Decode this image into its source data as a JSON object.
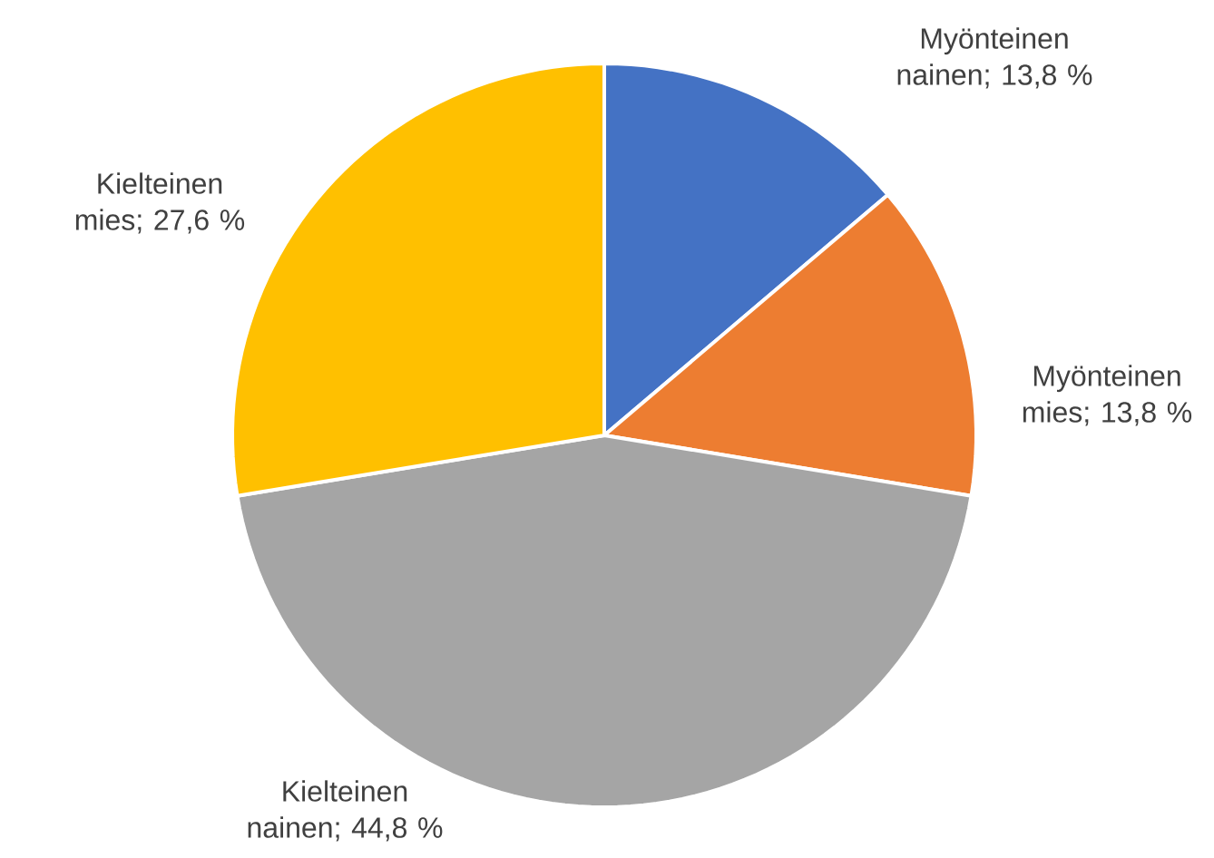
{
  "chart_data": {
    "type": "pie",
    "categories": [
      "Myönteinen nainen",
      "Myönteinen mies",
      "Kielteinen nainen",
      "Kielteinen mies"
    ],
    "values": [
      13.8,
      13.8,
      44.8,
      27.6
    ],
    "value_labels": [
      "; 13,8 %",
      "; 13,8 %",
      "; 44,8 %",
      "; 27,6 %"
    ],
    "colors": [
      "#4472c4",
      "#ed7d31",
      "#a5a5a5",
      "#ffc000"
    ]
  }
}
